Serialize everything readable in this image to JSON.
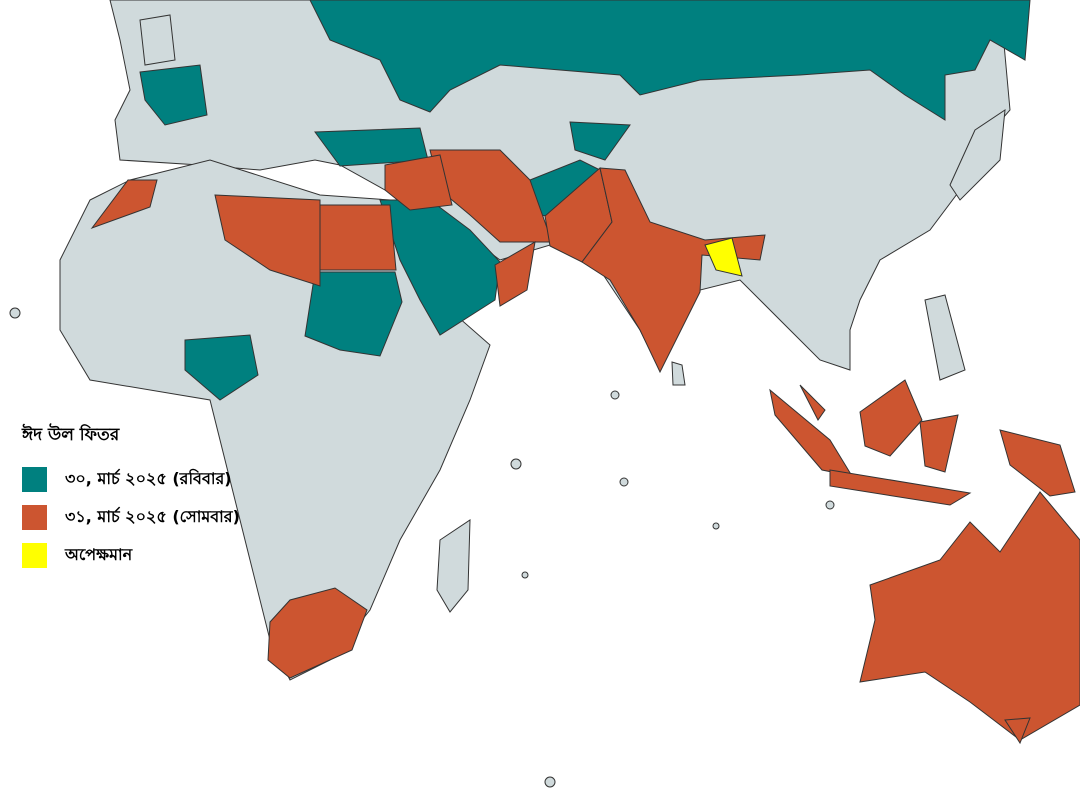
{
  "legend": {
    "title": "ঈদ উল ফিতর",
    "items": [
      {
        "label": "৩০, মার্চ ২০২৫ (রবিবার)",
        "color": "#00807f"
      },
      {
        "label": "৩১, মার্চ ২০২৫ (সোমবার)",
        "color": "#cc5530"
      },
      {
        "label": "অপেক্ষমান",
        "color": "#ffff00"
      }
    ]
  },
  "colors": {
    "land": "#d0dadc",
    "sea": "#ffffff"
  }
}
